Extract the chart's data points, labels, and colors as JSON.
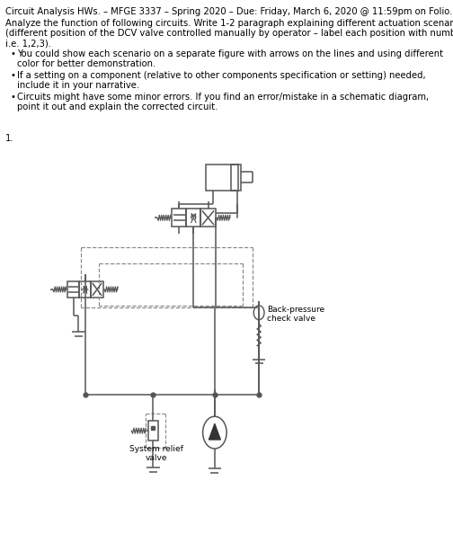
{
  "title_line": "Circuit Analysis HWs. – MFGE 3337 – Spring 2020 – Due: Friday, March 6, 2020 @ 11:59pm on Folio.",
  "para1_l1": "Analyze the function of following circuits. Write 1-2 paragraph explaining different actuation scenario",
  "para1_l2": "(different position of the DCV valve controlled manually by operator – label each position with numbers",
  "para1_l3": "i.e. 1,2,3).",
  "bullet1_l1": "You could show each scenario on a separate figure with arrows on the lines and using different",
  "bullet1_l2": "color for better demonstration.",
  "bullet2_l1": "If a setting on a component (relative to other components specification or setting) needed,",
  "bullet2_l2": "include it in your narrative.",
  "bullet3_l1": "Circuits might have some minor errors. If you find an error/mistake in a schematic diagram,",
  "bullet3_l2": "point it out and explain the corrected circuit.",
  "number_label": "1.",
  "label_back_pressure": "Back-pressure\ncheck valve",
  "label_system_relief": "System relief\nvalve",
  "bg_color": "#ffffff",
  "text_color": "#000000",
  "lc": "#555555",
  "dash_color": "#888888",
  "title_fontsize": 7.2,
  "body_fontsize": 7.2
}
